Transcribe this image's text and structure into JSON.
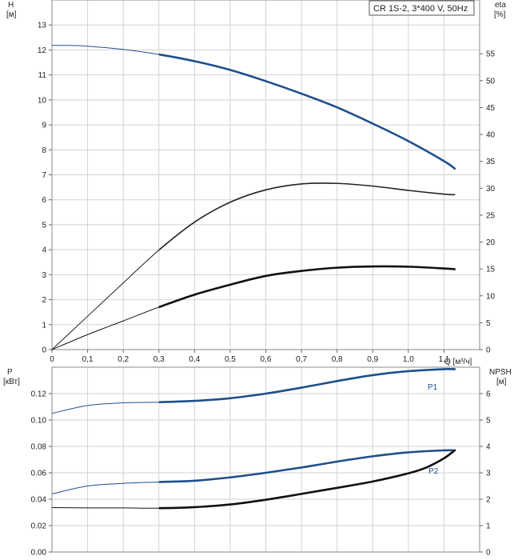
{
  "chart_data": [
    {
      "id": "head-efficiency",
      "type": "line",
      "title": "",
      "legend": "CR 1S-2, 3*400 V, 50Hz",
      "grid": true,
      "x_axis": {
        "label": "Q [м³/ч]",
        "range": [
          0,
          1.2
        ],
        "ticks": [
          0,
          0.1,
          0.2,
          0.3,
          0.4,
          0.5,
          0.6,
          0.7,
          0.8,
          0.9,
          1.0,
          1.1
        ],
        "tick_labels": [
          "0",
          "0,1",
          "0,2",
          "0,3",
          "0,4",
          "0,5",
          "0,6",
          "0,7",
          "0,8",
          "0,9",
          "1,0",
          "1,1"
        ]
      },
      "y_left": {
        "label": "H",
        "unit": "[м]",
        "range": [
          0,
          14
        ],
        "ticks": [
          0,
          1,
          2,
          3,
          4,
          5,
          6,
          7,
          8,
          9,
          10,
          11,
          12,
          13
        ]
      },
      "y_right": {
        "label": "eta",
        "unit": "[%]",
        "range": [
          0,
          65
        ],
        "ticks": [
          0,
          5,
          10,
          15,
          20,
          25,
          30,
          35,
          40,
          45,
          50,
          55
        ]
      },
      "series": [
        {
          "axis": "left",
          "color": "#1f4e8c",
          "x": [
            0,
            0.05,
            0.1,
            0.2,
            0.3,
            0.4,
            0.5,
            0.6,
            0.7,
            0.8,
            0.9,
            1.0,
            1.1,
            1.13
          ],
          "y": [
            12.18,
            12.18,
            12.15,
            12.02,
            11.82,
            11.55,
            11.2,
            10.75,
            10.25,
            9.7,
            9.05,
            8.35,
            7.55,
            7.25
          ]
        },
        {
          "axis": "right",
          "color": "#222222",
          "x": [
            0,
            0.1,
            0.2,
            0.3,
            0.4,
            0.5,
            0.6,
            0.7,
            0.8,
            0.9,
            1.0,
            1.1,
            1.13
          ],
          "y": [
            0,
            6.2,
            12.4,
            18.5,
            23.7,
            27.4,
            29.7,
            30.8,
            30.9,
            30.4,
            29.6,
            28.9,
            28.8
          ]
        },
        {
          "axis": "left",
          "color": "#111111",
          "x": [
            0,
            0.1,
            0.2,
            0.3,
            0.4,
            0.5,
            0.6,
            0.7,
            0.8,
            0.9,
            1.0,
            1.1,
            1.13
          ],
          "y": [
            0,
            0.6,
            1.15,
            1.7,
            2.2,
            2.6,
            2.95,
            3.15,
            3.28,
            3.33,
            3.32,
            3.25,
            3.22
          ]
        }
      ]
    },
    {
      "id": "power-npsh",
      "type": "line",
      "title": "",
      "grid": true,
      "x_axis": {
        "range": [
          0,
          1.2
        ],
        "ticks": [
          0,
          0.1,
          0.2,
          0.3,
          0.4,
          0.5,
          0.6,
          0.7,
          0.8,
          0.9,
          1.0,
          1.1
        ]
      },
      "y_left": {
        "label": "P",
        "unit": "[кВт]",
        "range": [
          0,
          0.14
        ],
        "ticks": [
          0,
          0.02,
          0.04,
          0.06,
          0.08,
          0.1,
          0.12
        ],
        "tick_labels": [
          "0.00",
          "0.02",
          "0.04",
          "0.06",
          "0.08",
          "0.10",
          "0.12"
        ]
      },
      "y_right": {
        "label": "NPSH",
        "unit": "[м]",
        "range": [
          0,
          7
        ],
        "ticks": [
          0,
          1,
          2,
          3,
          4,
          5,
          6
        ]
      },
      "series": [
        {
          "name": "P1",
          "axis": "left",
          "color": "#1f4e8c",
          "x": [
            0,
            0.1,
            0.2,
            0.3,
            0.4,
            0.5,
            0.6,
            0.7,
            0.8,
            0.9,
            1.0,
            1.1,
            1.13
          ],
          "y": [
            0.105,
            0.111,
            0.113,
            0.1135,
            0.1145,
            0.1165,
            0.12,
            0.1245,
            0.1295,
            0.134,
            0.137,
            0.1385,
            0.1385
          ]
        },
        {
          "name": "P2",
          "axis": "left",
          "color": "#1f4e8c",
          "x": [
            0,
            0.1,
            0.2,
            0.3,
            0.4,
            0.5,
            0.6,
            0.7,
            0.8,
            0.9,
            1.0,
            1.1,
            1.13
          ],
          "y": [
            0.044,
            0.05,
            0.052,
            0.053,
            0.054,
            0.0565,
            0.06,
            0.064,
            0.0685,
            0.0725,
            0.0755,
            0.077,
            0.077
          ]
        },
        {
          "axis": "right",
          "color": "#111111",
          "x": [
            0,
            0.1,
            0.2,
            0.3,
            0.4,
            0.5,
            0.6,
            0.7,
            0.8,
            0.9,
            1.0,
            1.05,
            1.1,
            1.13
          ],
          "y": [
            1.68,
            1.67,
            1.67,
            1.66,
            1.7,
            1.8,
            1.98,
            2.2,
            2.43,
            2.67,
            2.98,
            3.2,
            3.55,
            3.85
          ]
        }
      ]
    }
  ]
}
